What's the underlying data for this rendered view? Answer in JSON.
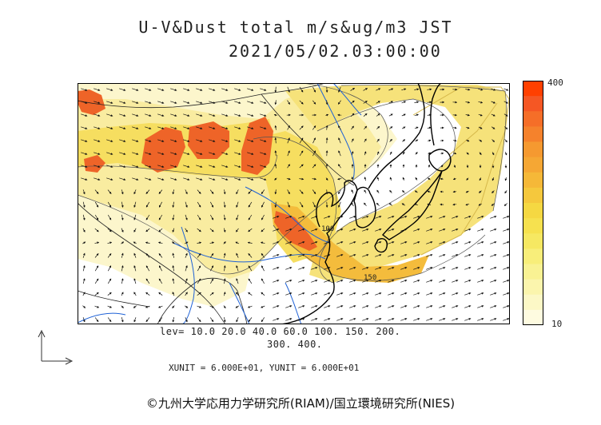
{
  "header": {
    "title": "U-V&Dust total m/s&ug/m3 JST",
    "subtitle": "2021/05/02.03:00:00"
  },
  "map": {
    "contour_labels": [
      "100",
      "150"
    ],
    "colors": {
      "land_line": "#000000",
      "river": "#1f62d6",
      "very_low": "#fcf6cc",
      "low": "#f9eca0",
      "mid": "#f6de60",
      "high": "#f4bc3c",
      "peak": "#ee6428",
      "max": "#ff4000"
    }
  },
  "colorbar": {
    "max_label": "400",
    "min_label": "10",
    "colors": [
      "#ff4000",
      "#f55724",
      "#f56e28",
      "#f5822c",
      "#f59930",
      "#f5a734",
      "#f5b838",
      "#f5c83d",
      "#f5d842",
      "#f6e14f",
      "#f6e862",
      "#f8ee7a",
      "#f9f293",
      "#fbf5ad",
      "#fcf8c6",
      "#fefbe0"
    ]
  },
  "legend": {
    "levels_line1": "lev= 10.0 20.0 40.0 60.0 100. 150. 200.",
    "levels_line2": "300. 400.",
    "units": "XUNIT = 6.000E+01, YUNIT = 6.000E+01"
  },
  "footer": {
    "credit": "©九州大学応用力学研究所(RIAM)/国立環境研究所(NIES)"
  }
}
